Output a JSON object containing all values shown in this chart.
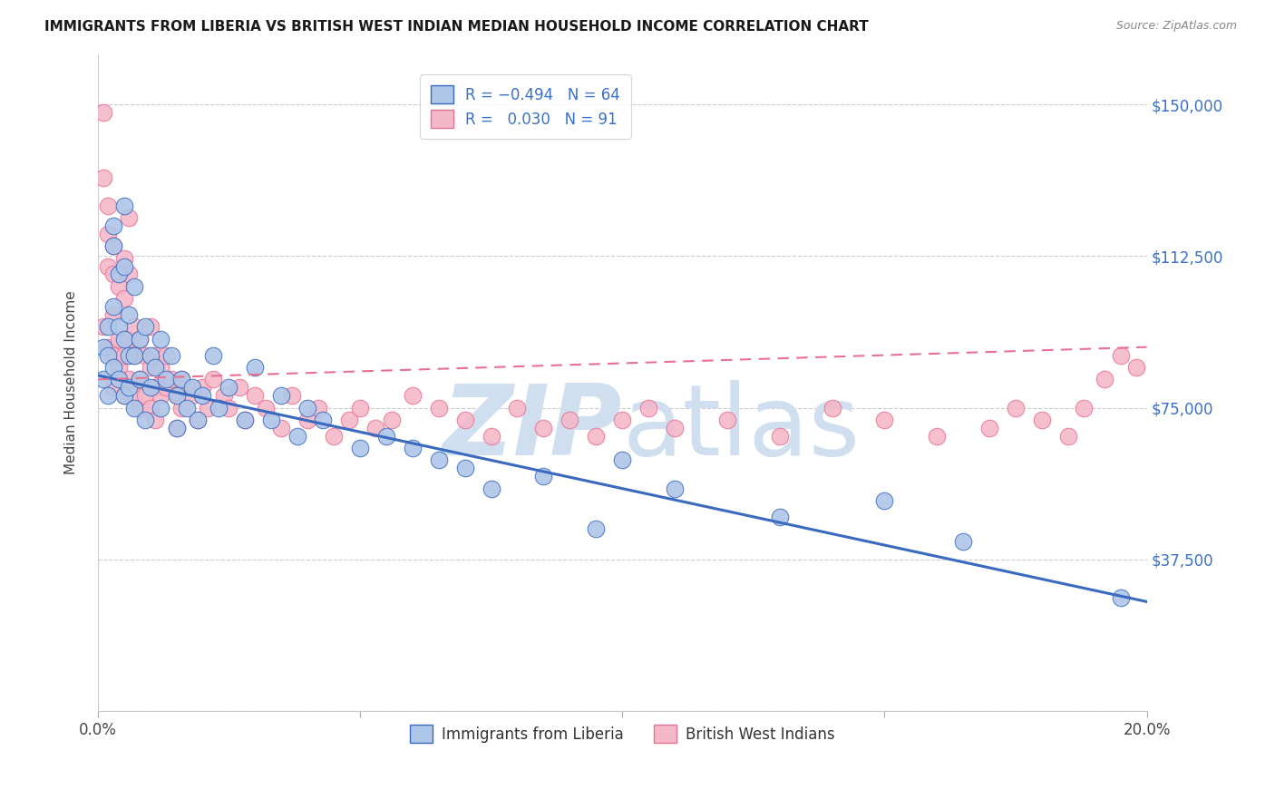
{
  "title": "IMMIGRANTS FROM LIBERIA VS BRITISH WEST INDIAN MEDIAN HOUSEHOLD INCOME CORRELATION CHART",
  "source": "Source: ZipAtlas.com",
  "ylabel": "Median Household Income",
  "xlim": [
    0.0,
    0.2
  ],
  "ylim": [
    0,
    162500
  ],
  "yticks": [
    0,
    37500,
    75000,
    112500,
    150000
  ],
  "ytick_labels": [
    "",
    "$37,500",
    "$75,000",
    "$112,500",
    "$150,000"
  ],
  "xticks": [
    0.0,
    0.05,
    0.1,
    0.15,
    0.2
  ],
  "xtick_labels": [
    "0.0%",
    "",
    "",
    "",
    "20.0%"
  ],
  "series1_color": "#aec6e8",
  "series2_color": "#f4b8c8",
  "trend1_color": "#3a6abf",
  "trend2_color": "#e87090",
  "watermark_color": "#d0dff0",
  "background_color": "#ffffff",
  "trend1_y0": 83000,
  "trend1_y1": 27000,
  "trend2_y0": 82000,
  "trend2_y1": 90000,
  "series1_x": [
    0.001,
    0.001,
    0.002,
    0.002,
    0.002,
    0.003,
    0.003,
    0.003,
    0.003,
    0.004,
    0.004,
    0.004,
    0.005,
    0.005,
    0.005,
    0.005,
    0.006,
    0.006,
    0.006,
    0.007,
    0.007,
    0.007,
    0.008,
    0.008,
    0.009,
    0.009,
    0.01,
    0.01,
    0.011,
    0.012,
    0.012,
    0.013,
    0.014,
    0.015,
    0.015,
    0.016,
    0.017,
    0.018,
    0.019,
    0.02,
    0.022,
    0.023,
    0.025,
    0.028,
    0.03,
    0.033,
    0.035,
    0.038,
    0.04,
    0.043,
    0.05,
    0.055,
    0.06,
    0.065,
    0.07,
    0.075,
    0.085,
    0.095,
    0.1,
    0.11,
    0.13,
    0.15,
    0.165,
    0.195
  ],
  "series1_y": [
    90000,
    82000,
    88000,
    78000,
    95000,
    120000,
    115000,
    100000,
    85000,
    108000,
    95000,
    82000,
    125000,
    110000,
    92000,
    78000,
    98000,
    88000,
    80000,
    105000,
    88000,
    75000,
    92000,
    82000,
    95000,
    72000,
    88000,
    80000,
    85000,
    92000,
    75000,
    82000,
    88000,
    78000,
    70000,
    82000,
    75000,
    80000,
    72000,
    78000,
    88000,
    75000,
    80000,
    72000,
    85000,
    72000,
    78000,
    68000,
    75000,
    72000,
    65000,
    68000,
    65000,
    62000,
    60000,
    55000,
    58000,
    45000,
    62000,
    55000,
    48000,
    52000,
    42000,
    28000
  ],
  "series2_x": [
    0.001,
    0.001,
    0.001,
    0.002,
    0.002,
    0.002,
    0.002,
    0.003,
    0.003,
    0.003,
    0.003,
    0.003,
    0.004,
    0.004,
    0.004,
    0.005,
    0.005,
    0.005,
    0.005,
    0.006,
    0.006,
    0.006,
    0.006,
    0.007,
    0.007,
    0.007,
    0.008,
    0.008,
    0.008,
    0.009,
    0.009,
    0.01,
    0.01,
    0.01,
    0.011,
    0.011,
    0.011,
    0.012,
    0.012,
    0.013,
    0.013,
    0.014,
    0.015,
    0.015,
    0.016,
    0.016,
    0.017,
    0.018,
    0.019,
    0.02,
    0.021,
    0.022,
    0.024,
    0.025,
    0.027,
    0.028,
    0.03,
    0.032,
    0.035,
    0.037,
    0.04,
    0.042,
    0.045,
    0.048,
    0.05,
    0.053,
    0.056,
    0.06,
    0.065,
    0.07,
    0.075,
    0.08,
    0.085,
    0.09,
    0.095,
    0.1,
    0.105,
    0.11,
    0.12,
    0.13,
    0.14,
    0.15,
    0.16,
    0.17,
    0.175,
    0.18,
    0.185,
    0.188,
    0.192,
    0.195,
    0.198
  ],
  "series2_y": [
    148000,
    132000,
    95000,
    125000,
    118000,
    110000,
    90000,
    115000,
    108000,
    98000,
    88000,
    80000,
    105000,
    92000,
    85000,
    112000,
    102000,
    88000,
    78000,
    122000,
    108000,
    92000,
    82000,
    95000,
    88000,
    78000,
    92000,
    82000,
    75000,
    88000,
    78000,
    95000,
    85000,
    75000,
    88000,
    80000,
    72000,
    85000,
    78000,
    88000,
    80000,
    82000,
    78000,
    70000,
    82000,
    75000,
    80000,
    78000,
    72000,
    80000,
    75000,
    82000,
    78000,
    75000,
    80000,
    72000,
    78000,
    75000,
    70000,
    78000,
    72000,
    75000,
    68000,
    72000,
    75000,
    70000,
    72000,
    78000,
    75000,
    72000,
    68000,
    75000,
    70000,
    72000,
    68000,
    72000,
    75000,
    70000,
    72000,
    68000,
    75000,
    72000,
    68000,
    70000,
    75000,
    72000,
    68000,
    75000,
    82000,
    88000,
    85000
  ]
}
